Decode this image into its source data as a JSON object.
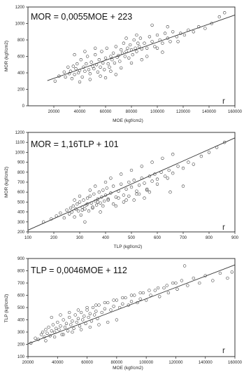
{
  "chart_data": [
    {
      "type": "scatter",
      "title": "MOR = 0,0055MOE + 223",
      "xlabel": "MOE (kgf/cm2)",
      "ylabel": "MOR (kgf/cm2)",
      "xlim": [
        0,
        160000
      ],
      "ylim": [
        0,
        1200
      ],
      "xticks": [
        20000,
        40000,
        60000,
        80000,
        100000,
        120000,
        140000,
        160000
      ],
      "xtick_labels": [
        "20000",
        "40000",
        "60000",
        "80000",
        "100000",
        "120000",
        "140000",
        "160000"
      ],
      "yticks": [
        0,
        200,
        400,
        600,
        800,
        1000,
        1200
      ],
      "ytick_labels": [
        "0",
        "200",
        "400",
        "600",
        "800",
        "1000",
        "1200"
      ],
      "annotation": "r",
      "fit": {
        "slope": 0.0055,
        "intercept": 223,
        "x_range": [
          15000,
          160000
        ]
      },
      "x": [
        21000,
        24000,
        28000,
        29000,
        31000,
        32000,
        33000,
        34000,
        35000,
        36000,
        37000,
        38000,
        39000,
        40000,
        41000,
        42000,
        43000,
        44000,
        45000,
        46000,
        47000,
        48000,
        49000,
        50000,
        51000,
        52000,
        53000,
        54000,
        55000,
        56000,
        57000,
        58000,
        59000,
        60000,
        61000,
        62000,
        63000,
        64000,
        65000,
        66000,
        67000,
        68000,
        69000,
        70000,
        71000,
        72000,
        73000,
        74000,
        75000,
        76000,
        77000,
        78000,
        79000,
        80000,
        81000,
        82000,
        83000,
        84000,
        85000,
        86000,
        87000,
        88000,
        90000,
        92000,
        94000,
        96000,
        98000,
        100000,
        102000,
        104000,
        106000,
        108000,
        110000,
        112000,
        115000,
        118000,
        121000,
        124000,
        128000,
        132000,
        137000,
        142000,
        148000,
        152000,
        36000,
        44000,
        52000,
        60000,
        68000,
        76000,
        84000,
        92000,
        100000,
        108000,
        116000,
        40000,
        48000,
        56000,
        64000,
        72000,
        80000,
        88000,
        96000,
        104000
      ],
      "y": [
        300,
        360,
        410,
        350,
        470,
        390,
        420,
        330,
        480,
        380,
        450,
        510,
        400,
        430,
        560,
        350,
        470,
        420,
        510,
        600,
        440,
        390,
        530,
        480,
        450,
        620,
        500,
        410,
        560,
        470,
        660,
        520,
        440,
        580,
        700,
        510,
        470,
        600,
        560,
        640,
        520,
        720,
        590,
        610,
        540,
        680,
        640,
        760,
        600,
        660,
        700,
        580,
        740,
        680,
        620,
        800,
        700,
        660,
        760,
        720,
        820,
        690,
        760,
        700,
        840,
        780,
        720,
        860,
        800,
        760,
        880,
        820,
        780,
        900,
        840,
        880,
        860,
        920,
        900,
        960,
        940,
        1000,
        1080,
        1130,
        620,
        660,
        700,
        340,
        380,
        820,
        860,
        600,
        700,
        960,
        780,
        290,
        320,
        360,
        420,
        460,
        520,
        560,
        980,
        650
      ]
    },
    {
      "type": "scatter",
      "title": "MOR = 1,16TLP + 101",
      "xlabel": "TLP (kgf/cm2)",
      "ylabel": "MOR (kgf/cm2)",
      "xlim": [
        100,
        900
      ],
      "ylim": [
        200,
        1200
      ],
      "xticks": [
        100,
        200,
        300,
        400,
        500,
        600,
        700,
        800,
        900
      ],
      "xtick_labels": [
        "100",
        "200",
        "300",
        "400",
        "500",
        "600",
        "700",
        "800",
        "900"
      ],
      "yticks": [
        200,
        300,
        400,
        500,
        600,
        700,
        800,
        900,
        1000,
        1100,
        1200
      ],
      "ytick_labels": [
        "200",
        "300",
        "400",
        "500",
        "600",
        "700",
        "800",
        "900",
        "1000",
        "1100",
        "1200"
      ],
      "annotation": "r",
      "fit": {
        "slope": 1.16,
        "intercept": 101,
        "x_range": [
          100,
          900
        ]
      },
      "x": [
        160,
        190,
        210,
        225,
        240,
        250,
        260,
        265,
        270,
        275,
        280,
        285,
        290,
        295,
        300,
        305,
        310,
        315,
        320,
        325,
        330,
        335,
        340,
        345,
        350,
        355,
        360,
        365,
        370,
        375,
        380,
        385,
        390,
        395,
        400,
        405,
        410,
        420,
        430,
        440,
        450,
        460,
        470,
        480,
        490,
        500,
        510,
        520,
        530,
        540,
        550,
        560,
        570,
        580,
        590,
        600,
        615,
        630,
        645,
        660,
        680,
        700,
        720,
        740,
        770,
        800,
        830,
        860,
        280,
        300,
        320,
        340,
        360,
        380,
        400,
        420,
        440,
        460,
        480,
        500,
        520,
        540,
        560,
        580,
        600,
        620,
        640,
        660,
        310,
        330,
        350,
        370,
        390,
        410,
        430,
        450,
        470,
        490,
        510,
        530,
        550,
        570,
        650,
        700
      ],
      "y": [
        300,
        330,
        360,
        390,
        340,
        420,
        380,
        440,
        400,
        460,
        350,
        430,
        480,
        410,
        500,
        370,
        450,
        520,
        430,
        470,
        540,
        410,
        560,
        490,
        450,
        580,
        510,
        470,
        530,
        600,
        490,
        550,
        620,
        510,
        570,
        640,
        530,
        590,
        660,
        550,
        610,
        680,
        570,
        630,
        700,
        650,
        720,
        610,
        670,
        740,
        690,
        630,
        760,
        710,
        780,
        730,
        800,
        760,
        820,
        790,
        860,
        840,
        900,
        880,
        960,
        1000,
        1050,
        1100,
        520,
        560,
        300,
        620,
        660,
        400,
        700,
        740,
        460,
        780,
        520,
        820,
        580,
        860,
        620,
        900,
        680,
        940,
        740,
        980,
        420,
        480,
        440,
        500,
        460,
        520,
        480,
        540,
        500,
        560,
        520,
        580,
        540,
        600,
        600,
        660
      ]
    },
    {
      "type": "scatter",
      "title": "TLP = 0,0046MOE + 112",
      "xlabel": "MOE (kgf/cm2)",
      "ylabel": "TLP (kgf/cm2)",
      "xlim": [
        20000,
        160000
      ],
      "ylim": [
        100,
        900
      ],
      "xticks": [
        20000,
        40000,
        60000,
        80000,
        100000,
        120000,
        140000,
        160000
      ],
      "xtick_labels": [
        "20000",
        "40000",
        "60000",
        "80000",
        "100000",
        "120000",
        "140000",
        "160000"
      ],
      "yticks": [
        100,
        200,
        300,
        400,
        500,
        600,
        700,
        800,
        900
      ],
      "ytick_labels": [
        "100",
        "200",
        "300",
        "400",
        "500",
        "600",
        "700",
        "800",
        "900"
      ],
      "annotation": "r",
      "fit": {
        "slope": 0.0046,
        "intercept": 112,
        "x_range": [
          20000,
          160000
        ]
      },
      "x": [
        22000,
        25000,
        27000,
        29000,
        30000,
        31000,
        32000,
        33000,
        34000,
        35000,
        36000,
        37000,
        38000,
        39000,
        40000,
        41000,
        42000,
        43000,
        44000,
        45000,
        46000,
        47000,
        48000,
        49000,
        50000,
        51000,
        52000,
        53000,
        54000,
        55000,
        56000,
        57000,
        58000,
        59000,
        60000,
        61000,
        62000,
        63000,
        64000,
        65000,
        66000,
        67000,
        68000,
        70000,
        72000,
        74000,
        76000,
        78000,
        80000,
        82000,
        84000,
        86000,
        88000,
        90000,
        92000,
        94000,
        96000,
        98000,
        100000,
        103000,
        106000,
        109000,
        112000,
        115000,
        118000,
        121000,
        124000,
        128000,
        132000,
        136000,
        140000,
        145000,
        150000,
        155000,
        158000,
        36000,
        42000,
        48000,
        54000,
        60000,
        66000,
        72000,
        78000,
        84000,
        90000,
        96000,
        102000,
        108000,
        114000,
        120000,
        126000,
        32000,
        38000,
        44000,
        50000,
        56000,
        62000,
        68000,
        74000,
        80000
      ],
      "y": [
        210,
        250,
        240,
        280,
        300,
        260,
        320,
        290,
        340,
        270,
        310,
        360,
        300,
        330,
        380,
        320,
        350,
        280,
        400,
        340,
        370,
        310,
        420,
        360,
        390,
        330,
        440,
        380,
        410,
        350,
        460,
        400,
        430,
        370,
        480,
        420,
        450,
        390,
        500,
        440,
        470,
        410,
        520,
        460,
        490,
        540,
        480,
        510,
        560,
        500,
        530,
        580,
        520,
        550,
        600,
        540,
        570,
        620,
        560,
        600,
        640,
        590,
        660,
        620,
        700,
        650,
        720,
        680,
        740,
        700,
        760,
        720,
        780,
        740,
        790,
        420,
        440,
        460,
        480,
        500,
        520,
        540,
        560,
        580,
        600,
        620,
        640,
        660,
        680,
        700,
        840,
        230,
        260,
        280,
        300,
        320,
        340,
        360,
        380,
        400
      ]
    }
  ]
}
